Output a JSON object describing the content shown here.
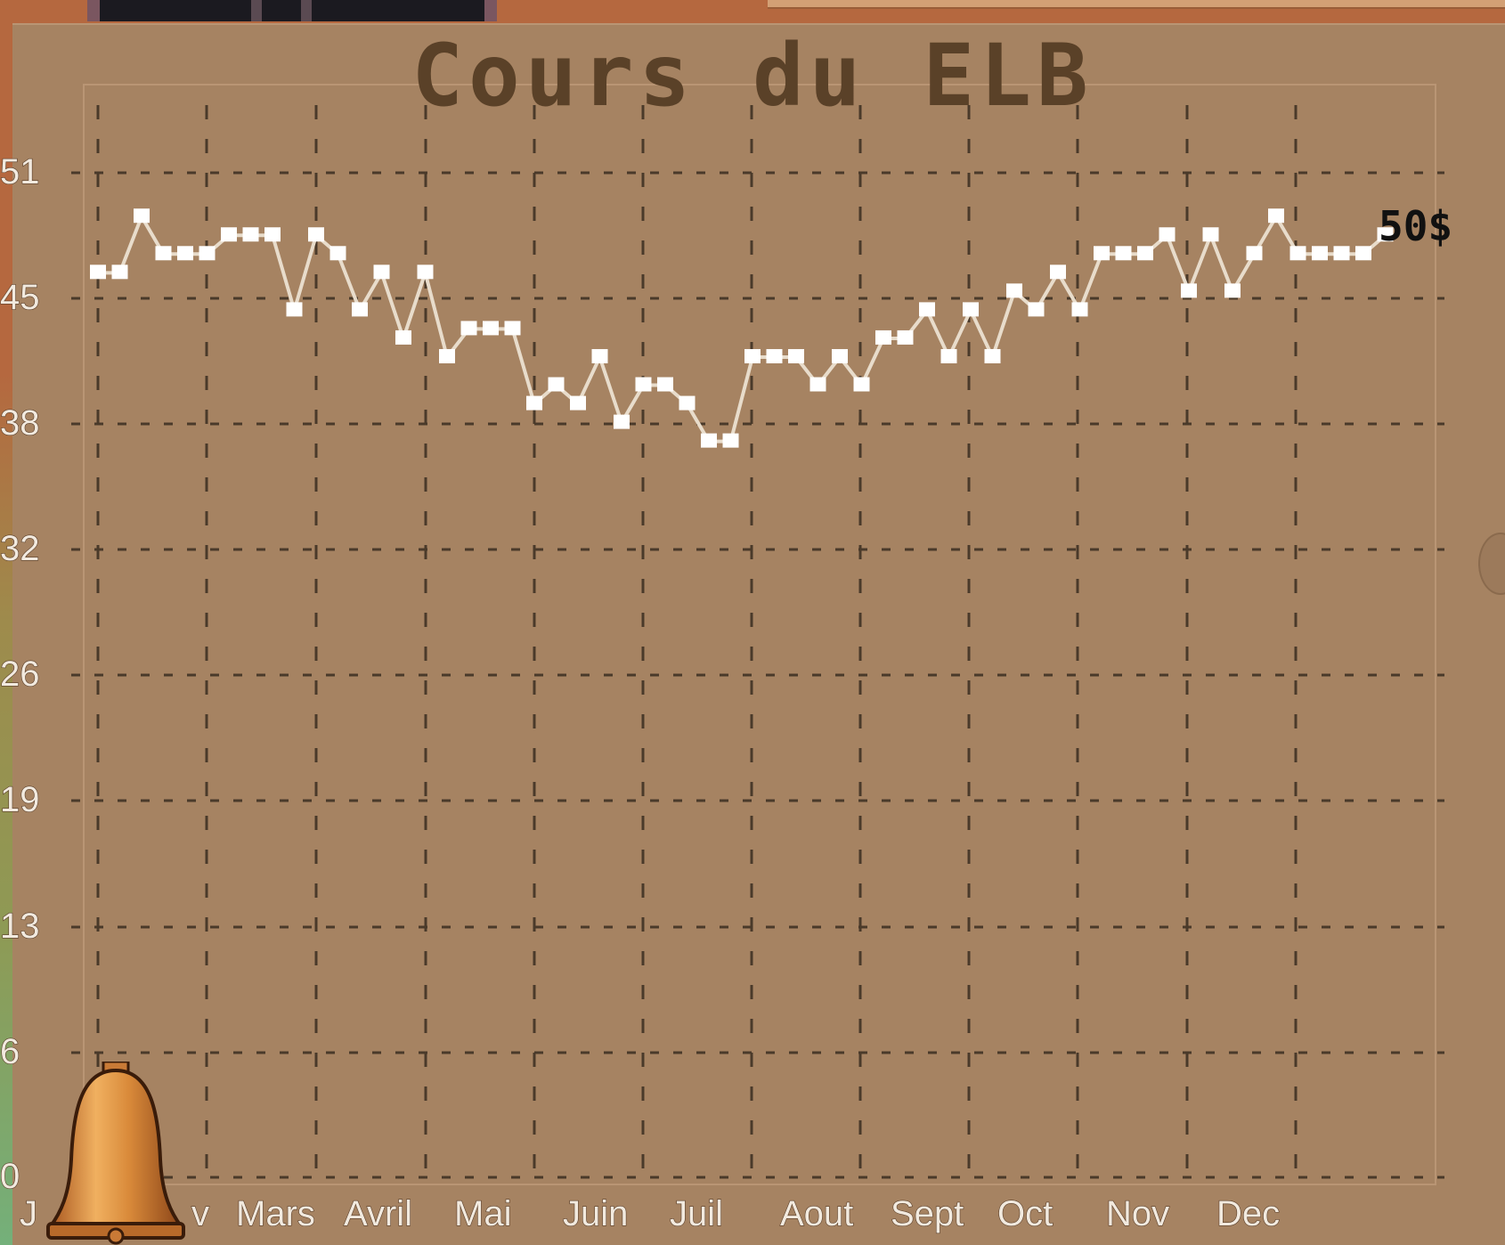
{
  "chart_data": {
    "type": "line",
    "title": "Cours du ELB",
    "current_price_label": "50$",
    "y_ticks": [
      "51",
      "45",
      "38",
      "32",
      "26",
      "19",
      "13",
      "6",
      "0"
    ],
    "x_ticks": [
      "J",
      "v",
      "Mars",
      "Avril",
      "Mai",
      "Juin",
      "Juil",
      "Aout",
      "Sept",
      "Oct",
      "Nov",
      "Dec"
    ],
    "ylim": [
      0,
      57
    ],
    "grid": true,
    "series": [
      {
        "values": [
          48,
          48,
          51,
          49,
          49,
          49,
          50,
          50,
          50,
          46,
          50,
          49,
          46,
          48,
          44.5,
          48,
          43.5,
          45,
          45,
          45,
          41,
          42,
          41,
          43.5,
          40,
          42,
          42,
          41,
          39,
          39,
          43.5,
          43.5,
          43.5,
          42,
          43.5,
          42,
          44.5,
          44.5,
          46,
          43.5,
          46,
          43.5,
          47,
          46,
          48,
          46,
          49,
          49,
          49,
          50,
          47,
          50,
          47,
          49,
          51,
          49,
          49,
          49,
          49,
          50
        ]
      }
    ],
    "line_color": "#e8dccb",
    "marker_color": "#ffffff"
  },
  "icons": {
    "notification": "bell-icon"
  },
  "colors": {
    "panel": "#a68362",
    "frame": "#b5683f",
    "grid": "#4a3a2a"
  }
}
